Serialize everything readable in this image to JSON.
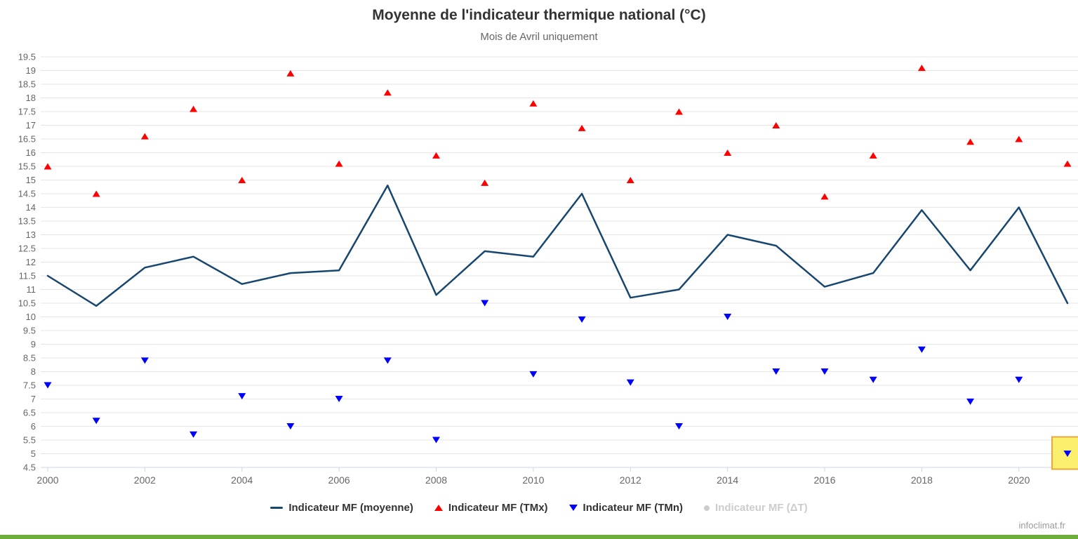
{
  "title": "Moyenne de l'indicateur thermique national (°C)",
  "subtitle": "Mois de Avril uniquement",
  "watermark": "infoclimat.fr",
  "colors": {
    "grid": "#e6e6e6",
    "axis": "#ccd6eb",
    "tick_label": "#666666",
    "title_text": "#333333",
    "subtitle_text": "#666666",
    "line_series": "#17466E",
    "tmx_series": "#ff0000",
    "tmn_series": "#0000ff",
    "disabled_series": "#cccccc",
    "footer_bar": "#6fae3a",
    "highlight_fill": "#fbf06d",
    "highlight_border": "#e7a93e"
  },
  "chart_data": {
    "type": "line",
    "title": "Moyenne de l'indicateur thermique national (°C)",
    "subtitle": "Mois de Avril uniquement",
    "x": [
      2000,
      2001,
      2002,
      2003,
      2004,
      2005,
      2006,
      2007,
      2008,
      2009,
      2010,
      2011,
      2012,
      2013,
      2014,
      2015,
      2016,
      2017,
      2018,
      2019,
      2020,
      2021
    ],
    "series": [
      {
        "name": "Indicateur MF (moyenne)",
        "type": "line",
        "marker": "line",
        "color": "#17466E",
        "visible": true,
        "values": [
          11.5,
          10.4,
          11.8,
          12.2,
          11.2,
          11.6,
          11.7,
          14.8,
          10.8,
          12.4,
          12.2,
          14.5,
          10.7,
          11.0,
          13.0,
          12.6,
          11.1,
          11.6,
          13.9,
          11.7,
          14.0,
          10.5
        ]
      },
      {
        "name": "Indicateur MF (TMx)",
        "type": "scatter",
        "marker": "triangle-up",
        "color": "#ff0000",
        "visible": true,
        "values": [
          15.5,
          14.5,
          16.6,
          17.6,
          15.0,
          18.9,
          15.6,
          18.2,
          15.9,
          14.9,
          17.8,
          16.9,
          15.0,
          17.5,
          16.0,
          17.0,
          14.4,
          15.9,
          19.1,
          16.4,
          16.5,
          15.6
        ]
      },
      {
        "name": "Indicateur MF (TMn)",
        "type": "scatter",
        "marker": "triangle-down",
        "color": "#0000ff",
        "visible": true,
        "values": [
          7.5,
          6.2,
          8.4,
          5.7,
          7.1,
          6.0,
          7.0,
          8.4,
          5.5,
          10.5,
          7.9,
          9.9,
          7.6,
          6.0,
          10.0,
          8.0,
          8.0,
          7.7,
          8.8,
          6.9,
          7.7,
          5.0
        ]
      },
      {
        "name": "Indicateur MF (ΔT)",
        "type": "scatter",
        "marker": "circle",
        "color": "#cccccc",
        "visible": false,
        "values": []
      }
    ],
    "ylim": [
      4.5,
      19.5
    ],
    "ytick_step": 0.5,
    "xticks": [
      2000,
      2002,
      2004,
      2006,
      2008,
      2010,
      2012,
      2014,
      2016,
      2018,
      2020
    ],
    "grid": true,
    "legend_position": "bottom"
  },
  "highlight": {
    "series": "Indicateur MF (TMn)",
    "year": 2021,
    "value": 5.0
  }
}
